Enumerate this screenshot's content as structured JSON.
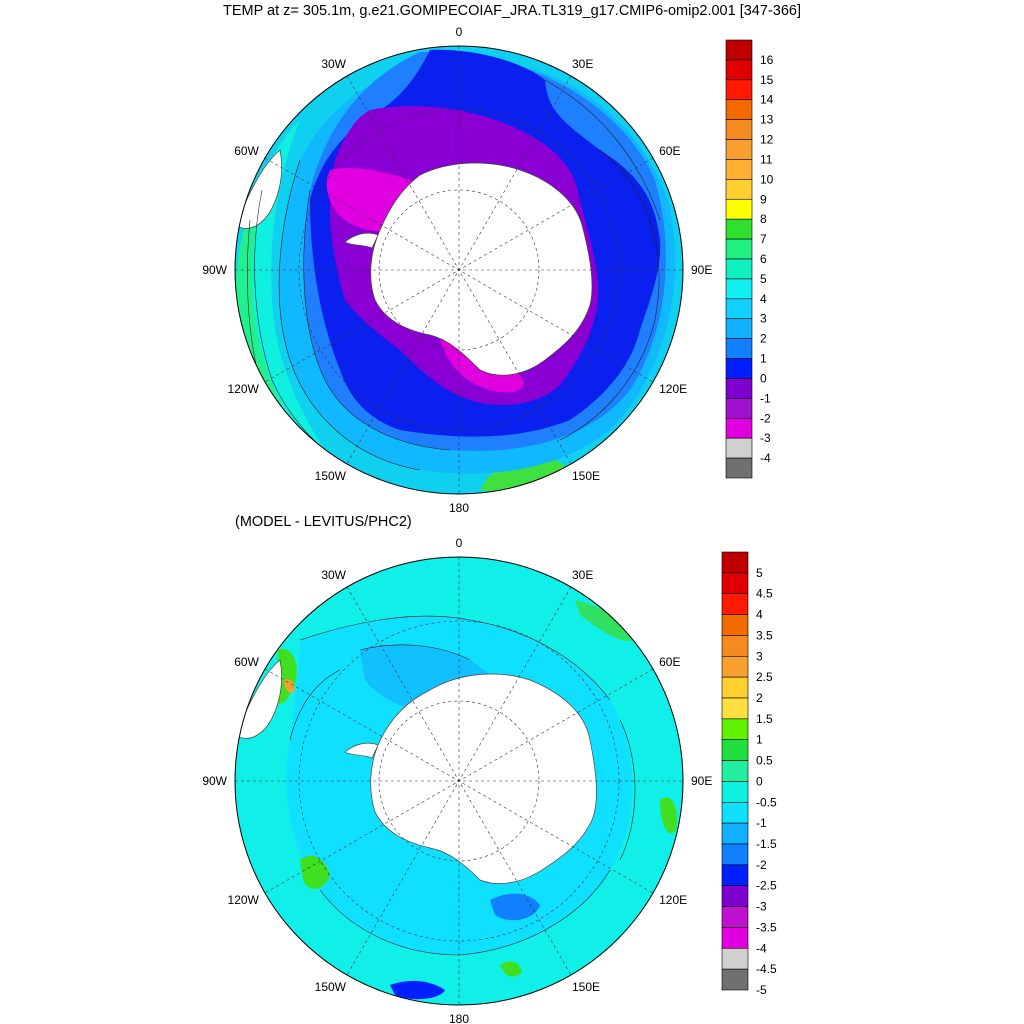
{
  "title": "TEMP at z= 305.1m, g.e21.GOMIPECOIAF_JRA.TL319_g17.CMIP6-omip2.001 [347-366]",
  "subtitle": "(MODEL - LEVITUS/PHC2)",
  "lon_labels": [
    {
      "text": "0",
      "lon": 0
    },
    {
      "text": "30E",
      "lon": 30
    },
    {
      "text": "60E",
      "lon": 60
    },
    {
      "text": "90E",
      "lon": 90
    },
    {
      "text": "120E",
      "lon": 120
    },
    {
      "text": "150E",
      "lon": 150
    },
    {
      "text": "180",
      "lon": 180
    },
    {
      "text": "150W",
      "lon": 210
    },
    {
      "text": "120W",
      "lon": 240
    },
    {
      "text": "90W",
      "lon": 270
    },
    {
      "text": "60W",
      "lon": 300
    },
    {
      "text": "30W",
      "lon": 330
    }
  ],
  "top_colorbar": {
    "labels": [
      "16",
      "15",
      "14",
      "13",
      "12",
      "11",
      "10",
      "9",
      "8",
      "7",
      "6",
      "5",
      "4",
      "3",
      "2",
      "1",
      "0",
      "-1",
      "-2",
      "-3",
      "-4"
    ],
    "colors": [
      "#c00000",
      "#e00000",
      "#ff1a00",
      "#f26a00",
      "#f58a20",
      "#f7a030",
      "#ffb030",
      "#ffd030",
      "#ffff00",
      "#30e030",
      "#20f080",
      "#10f0c0",
      "#10f0f0",
      "#10d0ff",
      "#10b0ff",
      "#1080ff",
      "#0020ff",
      "#8000d0",
      "#a010d0",
      "#e000e0",
      "#d0d0d0",
      "#707070"
    ]
  },
  "bottom_colorbar": {
    "labels": [
      "5",
      "4.5",
      "4",
      "3.5",
      "3",
      "2.5",
      "2",
      "1.5",
      "1",
      "0.5",
      "0",
      "-0.5",
      "-1",
      "-1.5",
      "-2",
      "-2.5",
      "-3",
      "-3.5",
      "-4",
      "-4.5",
      "-5"
    ],
    "colors": [
      "#c00000",
      "#e00000",
      "#ff1a00",
      "#f26a00",
      "#f58a20",
      "#f7a030",
      "#ffd030",
      "#ffe040",
      "#60f000",
      "#20e040",
      "#20f0a0",
      "#10f0e0",
      "#10e0ff",
      "#10b0ff",
      "#1080ff",
      "#0020ff",
      "#8000d0",
      "#c010d0",
      "#e000e0",
      "#d0d0d0",
      "#707070"
    ]
  }
}
